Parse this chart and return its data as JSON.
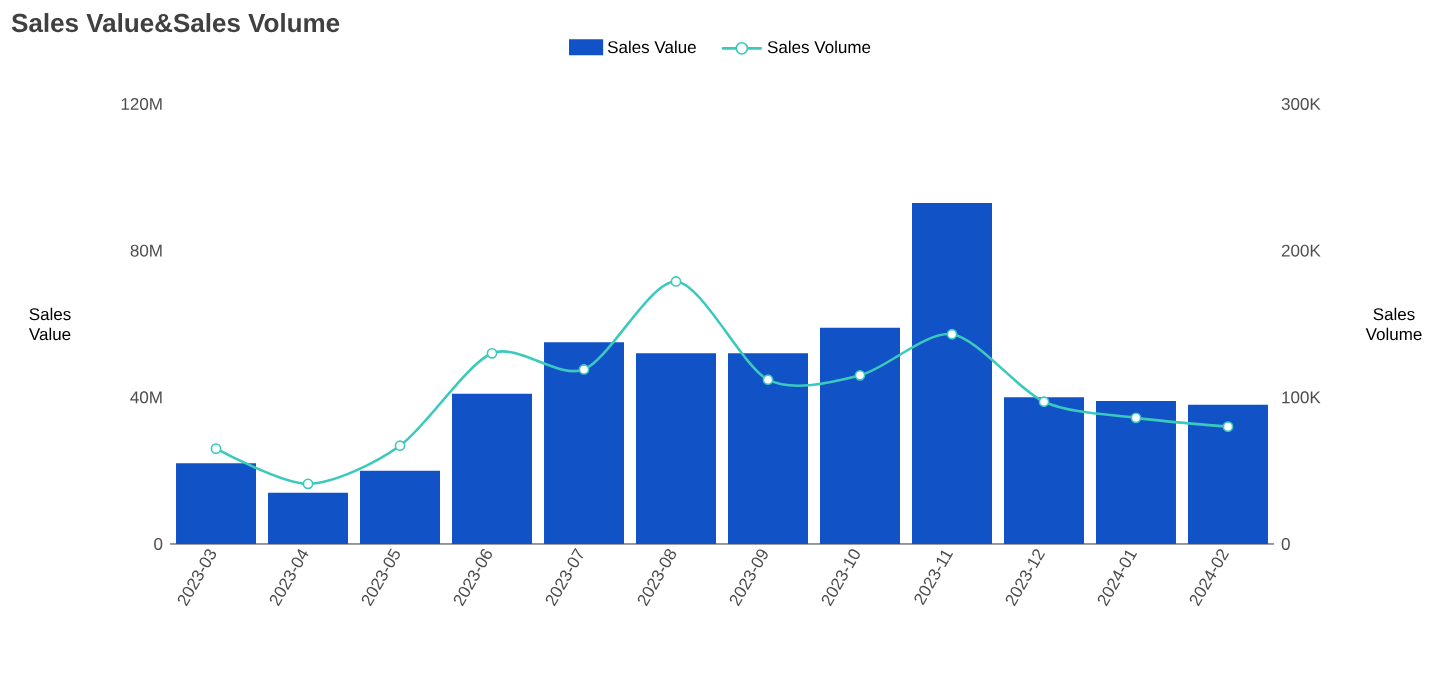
{
  "chart_data": {
    "type": "bar",
    "title": "Sales Value&Sales Volume",
    "categories": [
      "2023-03",
      "2023-04",
      "2023-05",
      "2023-06",
      "2023-07",
      "2023-08",
      "2023-09",
      "2023-10",
      "2023-11",
      "2023-12",
      "2024-01",
      "2024-02"
    ],
    "series": [
      {
        "name": "Sales Value",
        "color": "#1152c6",
        "values": [
          22000000,
          14000000,
          20000000,
          41000000,
          55000000,
          52000000,
          52000000,
          59000000,
          93000000,
          40000000,
          39000000,
          38000000
        ]
      },
      {
        "name": "Sales Volume",
        "type": "line",
        "axis": "y2",
        "color": "#3cc9bd",
        "marker": "circle",
        "values": [
          65000,
          41000,
          67000,
          130000,
          119000,
          179000,
          112000,
          115000,
          143000,
          97000,
          86000,
          80000
        ]
      }
    ],
    "ylabel": "Sales Value",
    "y2label": "Sales Volume",
    "ylim": [
      0,
      120000000
    ],
    "yticks": [
      {
        "value": 0,
        "label": "0"
      },
      {
        "value": 40000000,
        "label": "40M"
      },
      {
        "value": 80000000,
        "label": "80M"
      },
      {
        "value": 120000000,
        "label": "120M"
      }
    ],
    "y2lim": [
      0,
      300000
    ],
    "y2ticks": [
      {
        "value": 0,
        "label": "0"
      },
      {
        "value": 100000,
        "label": "100K"
      },
      {
        "value": 200000,
        "label": "200K"
      },
      {
        "value": 300000,
        "label": "300K"
      }
    ],
    "legend": "top",
    "grid": false
  }
}
